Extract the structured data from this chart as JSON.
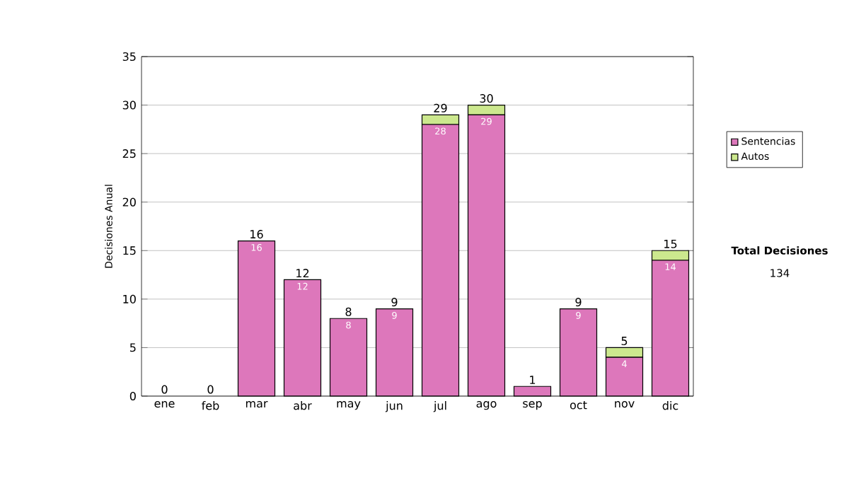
{
  "chart_data": {
    "type": "bar",
    "stacked": true,
    "ylabel": "Decisiones Anual",
    "categories": [
      "ene",
      "feb",
      "mar",
      "abr",
      "may",
      "jun",
      "jul",
      "ago",
      "sep",
      "oct",
      "nov",
      "dic"
    ],
    "series": [
      {
        "name": "Sentencias",
        "color": "#dd77bb",
        "values": [
          0,
          0,
          16,
          12,
          8,
          9,
          28,
          29,
          1,
          9,
          4,
          14
        ],
        "value_labels": [
          null,
          null,
          "16",
          "12",
          "8",
          "9",
          "28",
          "29",
          null,
          "9",
          "4",
          "14"
        ]
      },
      {
        "name": "Autos",
        "color": "#cce88e",
        "values": [
          0,
          0,
          0,
          0,
          0,
          0,
          1,
          1,
          0,
          0,
          1,
          1
        ]
      }
    ],
    "totals": [
      "0",
      "0",
      "16",
      "12",
      "8",
      "9",
      "29",
      "30",
      "1",
      "9",
      "5",
      "15"
    ],
    "ylim": [
      0,
      35
    ],
    "yticks": [
      0,
      5,
      10,
      15,
      20,
      25,
      30,
      35
    ],
    "grid": "y",
    "legend": "right",
    "annotations": [
      "Total Decisiones",
      "134"
    ]
  }
}
